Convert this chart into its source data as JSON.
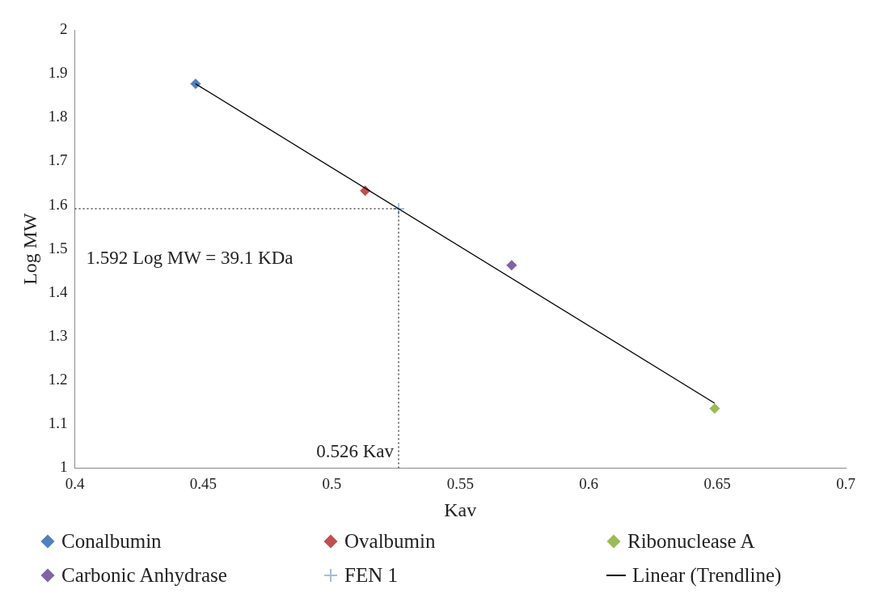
{
  "chart_data": {
    "type": "scatter",
    "xlabel": "Kav",
    "ylabel": "Log MW",
    "xlim": [
      0.4,
      0.7
    ],
    "xticks": [
      0.4,
      0.45,
      0.5,
      0.55,
      0.6,
      0.65,
      0.7
    ],
    "ylim": [
      1,
      2
    ],
    "yticks": [
      1,
      1.1,
      1.2,
      1.3,
      1.4,
      1.5,
      1.6,
      1.7,
      1.8,
      1.9,
      2
    ],
    "grid": false,
    "legend": "bottom",
    "marker": "diamond",
    "series": [
      {
        "name": "Conalbumin",
        "color": "#4f81bd",
        "x": [
          0.447
        ],
        "values": [
          1.877
        ]
      },
      {
        "name": "Ovalbumin",
        "color": "#c0504d",
        "x": [
          0.513
        ],
        "values": [
          1.633
        ]
      },
      {
        "name": "Ribonuclease A",
        "color": "#9bbb59",
        "x": [
          0.649
        ],
        "values": [
          1.136
        ]
      },
      {
        "name": "Carbonic Anhydrase",
        "color": "#8064a2",
        "x": [
          0.57
        ],
        "values": [
          1.463
        ]
      },
      {
        "name": "FEN 1",
        "color": "#a6bddb",
        "marker": "cross",
        "x": [
          0.526
        ],
        "values": [
          1.592
        ]
      },
      {
        "name": "Linear (Trendline)",
        "type": "line",
        "color": "#000000",
        "marker": "none",
        "x": [
          0.447,
          0.649
        ],
        "values": [
          1.877,
          1.148
        ]
      },
      {
        "type": "line",
        "color": "#333333",
        "marker": "none",
        "line_style": "dotted",
        "x": [
          0.4,
          0.526
        ],
        "values": [
          1.592,
          1.592
        ]
      },
      {
        "type": "line",
        "color": "#333333",
        "marker": "none",
        "line_style": "dotted",
        "x": [
          0.526,
          0.526
        ],
        "values": [
          1,
          1.592
        ]
      }
    ],
    "annotations": [
      {
        "text": "1.592 Log MW = 39.1 KDa",
        "x": 0.4,
        "y": 1.592
      },
      {
        "text": "0.526 Kav",
        "x": 0.526,
        "y": 1
      }
    ]
  }
}
